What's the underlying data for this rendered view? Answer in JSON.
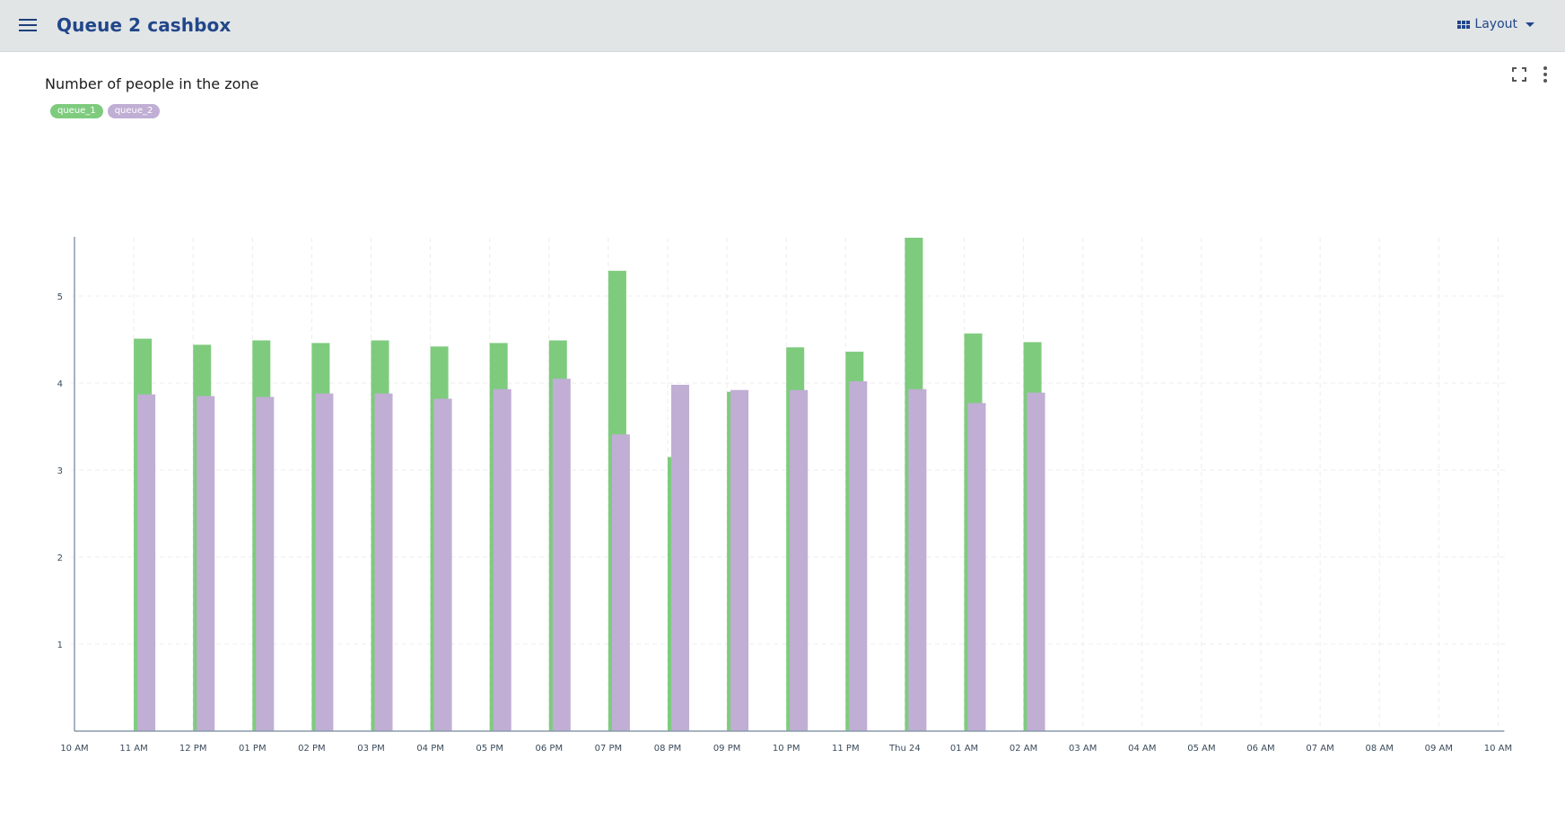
{
  "app": {
    "title": "Queue 2 cashbox",
    "layout_label": "Layout"
  },
  "icons": {
    "menu": "hamburger-menu-icon",
    "layout": "grid-icon",
    "expand": "fullscreen-icon",
    "more": "more-vertical-icon"
  },
  "colors": {
    "queue_1": "#7ecb7e",
    "queue_2": "#c0aed4",
    "header_bg": "#e1e5e6",
    "title": "#22468a"
  },
  "chart_data": {
    "type": "bar",
    "title": "Number of people in the zone",
    "x_ticks": [
      "10 AM",
      "11 AM",
      "12 PM",
      "01 PM",
      "02 PM",
      "03 PM",
      "04 PM",
      "05 PM",
      "06 PM",
      "07 PM",
      "08 PM",
      "09 PM",
      "10 PM",
      "11 PM",
      "Thu 24",
      "01 AM",
      "02 AM",
      "03 AM",
      "04 AM",
      "05 AM",
      "06 AM",
      "07 AM",
      "08 AM",
      "09 AM",
      "10 AM"
    ],
    "y_ticks": [
      1,
      2,
      3,
      4,
      5
    ],
    "ylim": [
      0,
      5.67
    ],
    "grid": true,
    "legend_position": "top-left",
    "series": [
      {
        "name": "queue_1",
        "color": "#7ecb7e",
        "values": [
          null,
          4.51,
          4.44,
          4.49,
          4.46,
          4.49,
          4.42,
          4.46,
          4.49,
          5.29,
          3.15,
          3.9,
          4.41,
          4.36,
          5.67,
          4.57,
          4.47
        ]
      },
      {
        "name": "queue_2",
        "color": "#c0aed4",
        "values": [
          null,
          3.87,
          3.85,
          3.84,
          3.88,
          3.88,
          3.82,
          3.93,
          4.05,
          3.41,
          3.98,
          3.92,
          3.92,
          4.02,
          3.93,
          3.77,
          3.89
        ]
      }
    ]
  }
}
